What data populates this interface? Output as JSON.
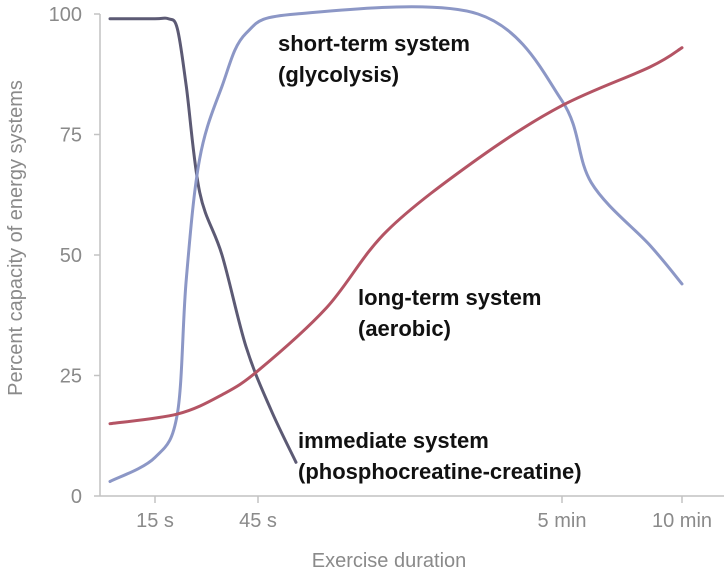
{
  "chart_data": {
    "type": "line",
    "ylabel": "Percent capacity of energy systems",
    "xlabel": "Exercise duration",
    "ylim": [
      0,
      100
    ],
    "yticks": [
      "0",
      "25",
      "50",
      "75",
      "100"
    ],
    "xticks": [
      "15 s",
      "45 s",
      "5 min",
      "10 min"
    ],
    "grid": false,
    "legend": "none",
    "series": [
      {
        "name_lines": [
          "immediate system",
          "(phosphocreatine-creatine)"
        ],
        "color": "#5c5a74",
        "points": [
          [
            "10 s",
            99
          ],
          [
            "15 s",
            99
          ],
          [
            "18 s",
            99
          ],
          [
            "20 s",
            97
          ],
          [
            "22 s",
            85
          ],
          [
            "25 s",
            63
          ],
          [
            "30 s",
            50
          ],
          [
            "40 s",
            31
          ],
          [
            "50 s",
            18
          ],
          [
            "60 s",
            7
          ]
        ]
      },
      {
        "name_lines": [
          "short-term system",
          "(glycolysis)"
        ],
        "color": "#8c97c6",
        "points": [
          [
            "10 s",
            3
          ],
          [
            "15 s",
            8
          ],
          [
            "20 s",
            17
          ],
          [
            "22 s",
            45
          ],
          [
            "25 s",
            70
          ],
          [
            "30 s",
            85
          ],
          [
            "40 s",
            96
          ],
          [
            "1 min",
            100
          ],
          [
            "4 min",
            100
          ],
          [
            "5 min",
            82
          ],
          [
            "6 min",
            65
          ],
          [
            "8 min",
            52
          ],
          [
            "10 min",
            44
          ]
        ]
      },
      {
        "name_lines": [
          "long-term system",
          "(aerobic)"
        ],
        "color": "#b45464",
        "points": [
          [
            "10 s",
            15
          ],
          [
            "20 s",
            17
          ],
          [
            "30 s",
            21
          ],
          [
            "45 s",
            26
          ],
          [
            "1.5 min",
            39
          ],
          [
            "2.5 min",
            55
          ],
          [
            "4 min",
            70
          ],
          [
            "5 min",
            81
          ],
          [
            "8 min",
            89
          ],
          [
            "10 min",
            93
          ]
        ]
      }
    ]
  }
}
